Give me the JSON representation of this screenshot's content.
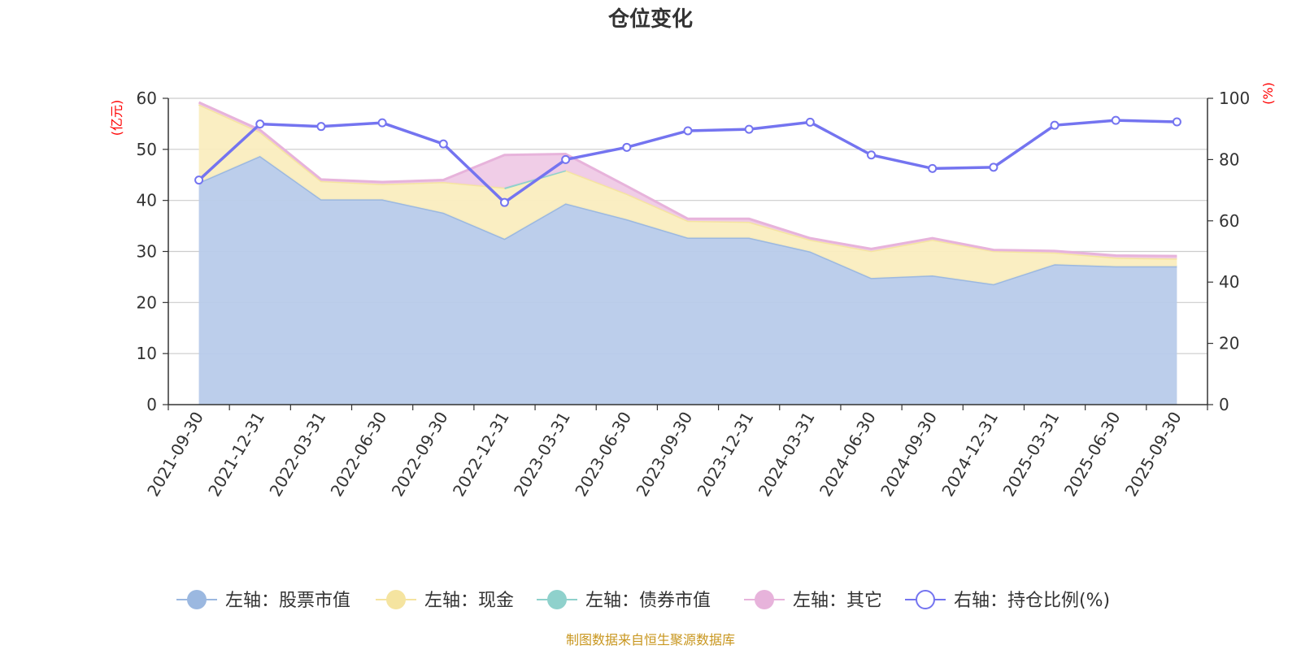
{
  "chart_data": {
    "type": "area",
    "title": "仓位变化",
    "left_unit": "(亿元)",
    "right_unit": "(%)",
    "source": "制图数据来自恒生聚源数据库",
    "categories": [
      "2021-09-30",
      "2021-12-31",
      "2022-03-31",
      "2022-06-30",
      "2022-09-30",
      "2022-12-31",
      "2023-03-31",
      "2023-06-30",
      "2023-09-30",
      "2023-12-31",
      "2024-03-31",
      "2024-06-30",
      "2024-09-30",
      "2024-12-31",
      "2025-03-31",
      "2025-06-30",
      "2025-09-30"
    ],
    "y_left": {
      "min": 0,
      "max": 60,
      "ticks": [
        0,
        10,
        20,
        30,
        40,
        50,
        60
      ]
    },
    "y_right": {
      "min": 0,
      "max": 100,
      "ticks": [
        0,
        20,
        40,
        60,
        80,
        100
      ]
    },
    "series": [
      {
        "name": "左轴：股票市值",
        "axis": "left",
        "kind": "area",
        "color": "#9bb8e0",
        "fill": "#b8cbea",
        "values": [
          43.5,
          48.7,
          40.2,
          40.2,
          37.6,
          32.5,
          39.4,
          36.3,
          32.7,
          32.7,
          30.0,
          24.8,
          25.3,
          23.6,
          27.5,
          27.1,
          27.1
        ]
      },
      {
        "name": "左轴：现金",
        "axis": "left",
        "kind": "area",
        "color": "#f5e4a0",
        "fill": "#faedbf",
        "values": [
          15.3,
          4.7,
          3.6,
          3.0,
          6.0,
          10.0,
          6.5,
          5.0,
          3.3,
          3.1,
          2.3,
          5.3,
          7.0,
          6.5,
          2.3,
          1.7,
          1.5
        ]
      },
      {
        "name": "左轴：债券市值",
        "axis": "left",
        "kind": "area",
        "color": "#8fd1cc",
        "fill": "#b8e4e0",
        "values": [
          0,
          0,
          0,
          0,
          0,
          0,
          0,
          0,
          0,
          0,
          0,
          0,
          0,
          0,
          0,
          0,
          0
        ],
        "segment": {
          "from": 5,
          "to": 6,
          "values": [
            42.4,
            45.9
          ]
        }
      },
      {
        "name": "左轴：其它",
        "axis": "left",
        "kind": "area",
        "color": "#e7b3db",
        "fill": "#efcae6",
        "values": [
          0.4,
          0.4,
          0.3,
          0.4,
          0.4,
          6.4,
          3.2,
          1.5,
          0.4,
          0.6,
          0.3,
          0.4,
          0.3,
          0.2,
          0.3,
          0.4,
          0.5
        ]
      },
      {
        "name": "右轴：持仓比例(%)",
        "axis": "right",
        "kind": "line",
        "color": "#7474f0",
        "values": [
          73.3,
          91.6,
          90.8,
          92.0,
          85.1,
          66.0,
          80.0,
          84.0,
          89.4,
          89.9,
          92.2,
          81.5,
          77.1,
          77.5,
          91.2,
          92.8,
          92.3
        ]
      }
    ],
    "legend": [
      "左轴：股票市值",
      "左轴：现金",
      "左轴：债券市值",
      "左轴：其它",
      "右轴：持仓比例(%)"
    ],
    "grid": true
  }
}
